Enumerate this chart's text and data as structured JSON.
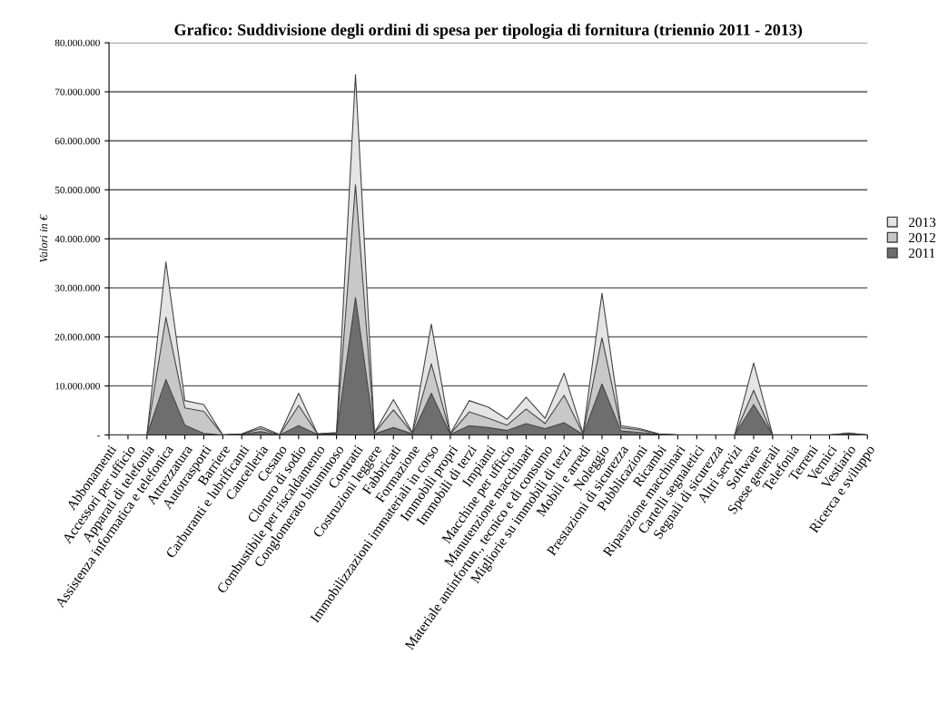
{
  "chart_data": {
    "type": "area",
    "stacked": true,
    "title": "Grafico: Suddivisione degli ordini di spesa per tipologia di fornitura (triennio 2011 - 2013)",
    "ylabel": "Valori in €",
    "categories": [
      "Abbonamenti",
      "Accessori per ufficio",
      "Apparati di telefonia",
      "Assistenza informatica e telefonica",
      "Attrezzatura",
      "Autotrasporti",
      "Barriere",
      "Carburanti e lubrificanti",
      "Cancelleria",
      "Cesano",
      "Cloruro di sodio",
      "Combustibile per riscaldamento",
      "Conglomerato bituminoso",
      "Contratti",
      "Costruzioni leggere",
      "Fabbricati",
      "Formazione",
      "Immobilizzazioni immateriali in corso",
      "Immobili propri",
      "Immobili di terzi",
      "Impianti",
      "Macchine per ufficio",
      "Manutenzione macchinari",
      "Materiale antinfortun., tecnico e di consumo",
      "Migliorie su immobili di terzi",
      "Mobili e arredi",
      "Noleggio",
      "Prestazioni di sicurezza",
      "Pubblicazioni",
      "Ricambi",
      "Riparazione macchinari",
      "Cartelli segnaletici",
      "Segnali di sicurezza",
      "Altri servizi",
      "Software",
      "Spese generali",
      "Telefonia",
      "Terreni",
      "Vernici",
      "Vestiario",
      "Ricerca e sviluppo"
    ],
    "series": [
      {
        "name": "2011",
        "color": "#6e6e6e",
        "values": [
          0,
          0,
          0,
          11300000,
          2000000,
          300000,
          0,
          100000,
          700000,
          0,
          1900000,
          100000,
          200000,
          28000000,
          200000,
          1500000,
          200000,
          8500000,
          100000,
          1900000,
          1500000,
          900000,
          2300000,
          1300000,
          2500000,
          100000,
          10400000,
          800000,
          500000,
          100000,
          0,
          0,
          0,
          0,
          6200000,
          0,
          0,
          0,
          0,
          100000,
          0
        ]
      },
      {
        "name": "2012",
        "color": "#c8c8c8",
        "values": [
          0,
          0,
          0,
          12700000,
          3500000,
          4500000,
          0,
          100000,
          600000,
          0,
          4100000,
          100000,
          200000,
          23000000,
          200000,
          3600000,
          200000,
          6000000,
          100000,
          2800000,
          1900000,
          1100000,
          3000000,
          1000000,
          5600000,
          100000,
          9400000,
          700000,
          500000,
          100000,
          0,
          0,
          0,
          0,
          2900000,
          0,
          0,
          0,
          0,
          200000,
          0
        ]
      },
      {
        "name": "2013",
        "color": "#e4e4e4",
        "values": [
          0,
          0,
          0,
          11300000,
          1500000,
          1400000,
          0,
          0,
          400000,
          100000,
          2500000,
          0,
          100000,
          22500000,
          100000,
          2100000,
          100000,
          8100000,
          100000,
          2300000,
          2300000,
          1200000,
          2400000,
          1100000,
          4500000,
          100000,
          9100000,
          400000,
          300000,
          0,
          0,
          0,
          0,
          0,
          5600000,
          0,
          0,
          0,
          0,
          100000,
          0
        ]
      }
    ],
    "ylim": [
      0,
      80000000
    ],
    "yticks": [
      {
        "value": 0,
        "label": "-"
      },
      {
        "value": 10000000,
        "label": "10.000.000"
      },
      {
        "value": 20000000,
        "label": "20.000.000"
      },
      {
        "value": 30000000,
        "label": "30.000.000"
      },
      {
        "value": 40000000,
        "label": "40.000.000"
      },
      {
        "value": 50000000,
        "label": "50.000.000"
      },
      {
        "value": 60000000,
        "label": "60.000.000"
      },
      {
        "value": 70000000,
        "label": "70.000.000"
      },
      {
        "value": 80000000,
        "label": "80.000.000"
      }
    ],
    "grid": "y",
    "legend": "right"
  }
}
